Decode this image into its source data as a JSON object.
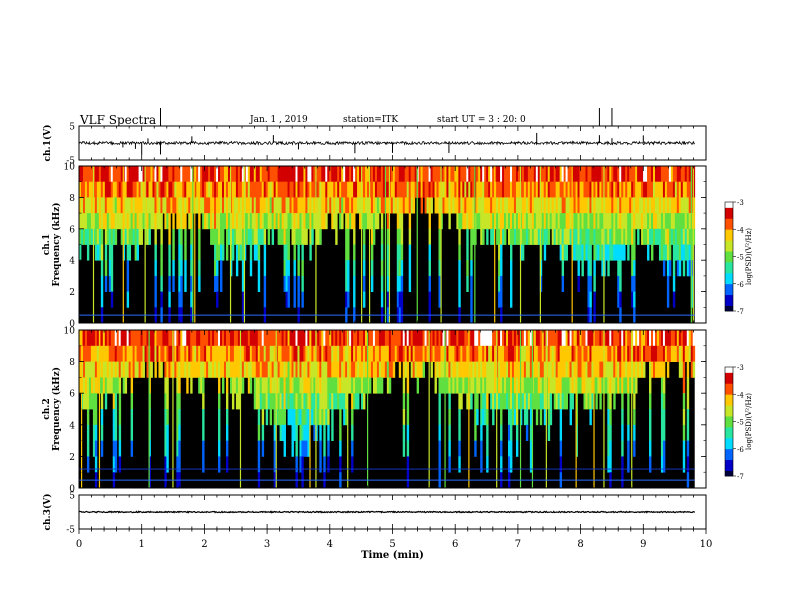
{
  "header": {
    "title": "VLF Spectra",
    "date": "Jan. 1 , 2019",
    "station": "station=ITK",
    "start_ut": "start UT = 3 : 20: 0"
  },
  "chart_data": [
    {
      "id": "ch1-waveform",
      "type": "line",
      "ylabel": "ch.1(V)",
      "ylim": [
        -5,
        5
      ],
      "yticks": [
        "5",
        "-5"
      ],
      "baseline_v": 0,
      "note_spikes_at_min": [
        0.7,
        0.9,
        1.0,
        1.1,
        1.3,
        1.8,
        3.1,
        3.5,
        4.4,
        5.0,
        5.9,
        7.3,
        8.3,
        8.5,
        9.0
      ]
    },
    {
      "id": "ch1-spectrogram",
      "type": "heatmap",
      "ylabel": "ch.1\nFrequency (kHz)",
      "ylabel_top": "ch.1",
      "ylabel_bottom": "Frequency (kHz)",
      "ylim": [
        0,
        10
      ],
      "yticks": [
        "0",
        "2",
        "4",
        "6",
        "8",
        "10"
      ],
      "colorbar": {
        "label": "log(PSD)(V²/Hz)",
        "range": [
          -7,
          -3
        ],
        "ticks": [
          "-3",
          "-4",
          "-5",
          "-6",
          "-7"
        ]
      }
    },
    {
      "id": "ch2-spectrogram",
      "type": "heatmap",
      "ylabel_top": "ch.2",
      "ylabel_bottom": "Frequency (kHz)",
      "ylim": [
        0,
        10
      ],
      "yticks": [
        "0",
        "2",
        "4",
        "6",
        "8",
        "10"
      ],
      "colorbar": {
        "label": "log(PSD)(V²/Hz)",
        "range": [
          -7,
          -3
        ],
        "ticks": [
          "-3",
          "-4",
          "-5",
          "-6",
          "-7"
        ]
      }
    },
    {
      "id": "ch3-waveform",
      "type": "line",
      "ylabel": "ch.3(V)",
      "ylim": [
        -5,
        5
      ],
      "yticks": [
        "5",
        "-5"
      ],
      "baseline_v": 0
    }
  ],
  "xaxis": {
    "label": "Time (min)",
    "xlim": [
      0,
      10
    ],
    "ticks": [
      "0",
      "1",
      "2",
      "3",
      "4",
      "5",
      "6",
      "7",
      "8",
      "9",
      "10"
    ]
  },
  "colors": {
    "colormap": [
      "#00003a",
      "#0000c8",
      "#0064ff",
      "#00dcff",
      "#28e6a0",
      "#60e040",
      "#c8e628",
      "#ffc800",
      "#ff5000",
      "#d20000",
      "#ffffff"
    ],
    "background": "#000000",
    "trace": "#000000"
  }
}
